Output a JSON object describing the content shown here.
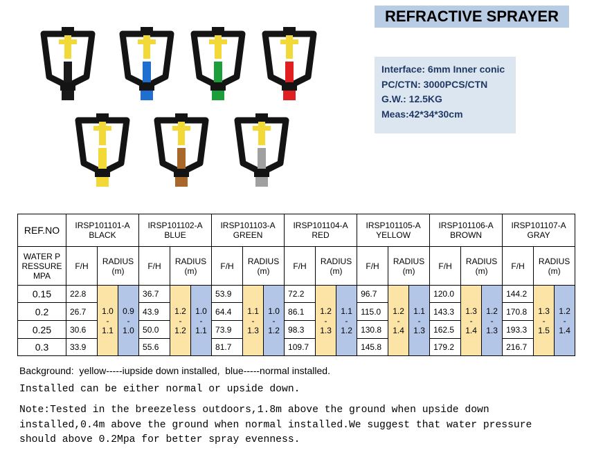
{
  "header": {
    "title": "REFRACTIVE SPRAYER"
  },
  "specs": [
    "Interface: 6mm Inner conic",
    "PC/CTN: 3000PCS/CTN",
    "G.W.: 12.5KG",
    "Meas:42*34*30cm"
  ],
  "table": {
    "ref_label": "REF.NO",
    "pressure_label": "WATER PRESSURE MPA",
    "fh_label": "F/H",
    "radius_label": "RADIUS (m)",
    "range_separator": "-",
    "pressures": [
      "0.15",
      "0.2",
      "0.25",
      "0.3"
    ],
    "models": [
      {
        "code": "IRSP101101-A",
        "color": "BLACK",
        "fh": [
          "22.8",
          "26.7",
          "30.6",
          "33.9"
        ],
        "radius_upside": [
          "1.0",
          "1.1"
        ],
        "radius_normal": [
          "0.9",
          "1.0"
        ]
      },
      {
        "code": "IRSP101102-A",
        "color": "BLUE",
        "fh": [
          "36.7",
          "43.9",
          "50.0",
          "55.6"
        ],
        "radius_upside": [
          "1.2",
          "1.2"
        ],
        "radius_normal": [
          "1.0",
          "1.1"
        ]
      },
      {
        "code": "IRSP101103-A",
        "color": "GREEN",
        "fh": [
          "53.9",
          "64.4",
          "73.9",
          "81.7"
        ],
        "radius_upside": [
          "1.1",
          "1.3"
        ],
        "radius_normal": [
          "1.0",
          "1.2"
        ]
      },
      {
        "code": "IRSP101104-A",
        "color": "RED",
        "fh": [
          "72.2",
          "86.1",
          "98.3",
          "109.7"
        ],
        "radius_upside": [
          "1.2",
          "1.3"
        ],
        "radius_normal": [
          "1.1",
          "1.2"
        ]
      },
      {
        "code": "IRSP101105-A",
        "color": "YELLOW",
        "fh": [
          "96.7",
          "115.0",
          "130.8",
          "145.8"
        ],
        "radius_upside": [
          "1.2",
          "1.4"
        ],
        "radius_normal": [
          "1.1",
          "1.3"
        ]
      },
      {
        "code": "IRSP101106-A",
        "color": "BROWN",
        "fh": [
          "120.0",
          "143.3",
          "162.5",
          "179.2"
        ],
        "radius_upside": [
          "1.3",
          "1.4"
        ],
        "radius_normal": [
          "1.2",
          "1.3"
        ]
      },
      {
        "code": "IRSP101107-A",
        "color": "GRAY",
        "fh": [
          "144.2",
          "170.8",
          "193.3",
          "216.7"
        ],
        "radius_upside": [
          "1.3",
          "1.5"
        ],
        "radius_normal": [
          "1.2",
          "1.4"
        ]
      }
    ]
  },
  "notes": {
    "background": "Background:  yellow-----iupside down installed,  blue-----normal installed.",
    "installed": "Installed can be either normal or upside down.",
    "note": "Note:Tested in the breezeless outdoors,1.8m above the ground when upside down installed,0.4m above the ground when normal installed.We suggest that water pressure should above 0.2Mpa for better spray evenness."
  }
}
